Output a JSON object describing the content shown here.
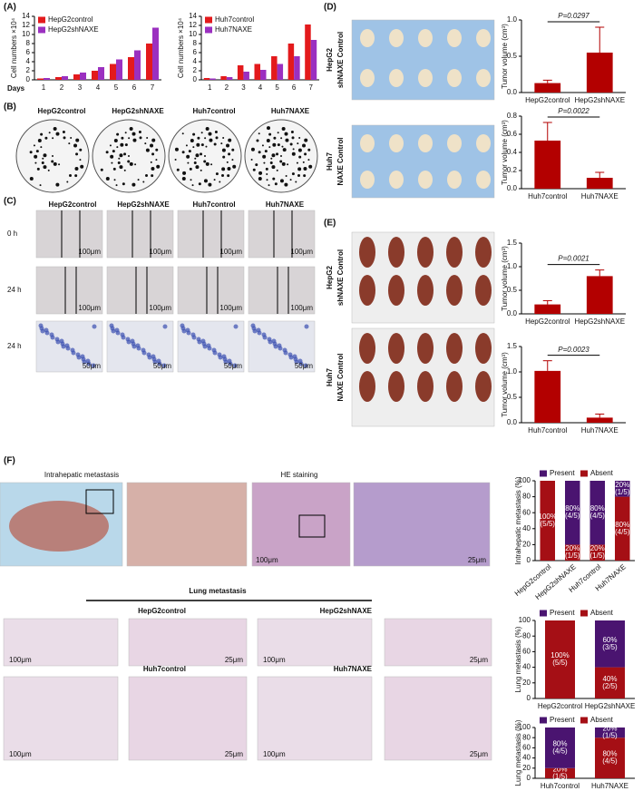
{
  "chart_data": [
    {
      "type": "bar",
      "ylabel": "Cell numbers ×10⁴",
      "xlabel": "Days",
      "categories": [
        "1",
        "2",
        "3",
        "4",
        "5",
        "6",
        "7"
      ],
      "series": [
        {
          "name": "HepG2control",
          "color": "#e31a1c",
          "values": [
            0.3,
            0.6,
            1.2,
            2.0,
            3.5,
            5.0,
            8.0
          ]
        },
        {
          "name": "HepG2shNAXE",
          "color": "#9b30c0",
          "values": [
            0.4,
            0.8,
            1.6,
            2.8,
            4.5,
            6.5,
            11.5
          ]
        }
      ],
      "ylim": [
        0,
        14
      ],
      "yticks": [
        0,
        2,
        4,
        6,
        8,
        10,
        12,
        14
      ],
      "legend": "upper left"
    },
    {
      "type": "bar",
      "ylabel": "Cell numbers ×10⁴",
      "categories": [
        "1",
        "2",
        "3",
        "4",
        "5",
        "6",
        "7"
      ],
      "series": [
        {
          "name": "Huh7control",
          "color": "#e31a1c",
          "values": [
            0.4,
            0.8,
            3.2,
            3.5,
            5.2,
            8.0,
            12.2
          ]
        },
        {
          "name": "Huh7NAXE",
          "color": "#9b30c0",
          "values": [
            0.3,
            0.6,
            1.8,
            2.2,
            3.5,
            5.2,
            8.8
          ]
        }
      ],
      "ylim": [
        0,
        14
      ],
      "yticks": [
        0,
        2,
        4,
        6,
        8,
        10,
        12,
        14
      ],
      "legend": "upper left"
    },
    {
      "type": "bar",
      "ylabel": "Tumor volume (cm³)",
      "categories": [
        "HepG2control",
        "HepG2shNAXE"
      ],
      "annotation": "P=0.0297",
      "series": [
        {
          "color": "#b30000",
          "values": [
            0.13,
            0.55
          ],
          "errors": [
            0.04,
            0.35
          ]
        }
      ],
      "ylim": [
        0,
        1
      ],
      "yticks": [
        {
          "value": 0,
          "label": "0.0"
        },
        {
          "value": 0.5,
          "label": "0.5"
        },
        {
          "value": 1,
          "label": "1.0"
        }
      ]
    },
    {
      "type": "bar",
      "ylabel": "Tumor volume (cm³)",
      "categories": [
        "Huh7control",
        "Huh7NAXE"
      ],
      "annotation": "P=0.0022",
      "series": [
        {
          "color": "#b30000",
          "values": [
            0.53,
            0.12
          ],
          "errors": [
            0.2,
            0.06
          ]
        }
      ],
      "ylim": [
        0,
        0.8
      ],
      "yticks": [
        {
          "value": 0,
          "label": "0.0"
        },
        {
          "value": 0.2,
          "label": "0.2"
        },
        {
          "value": 0.4,
          "label": "0.4"
        },
        {
          "value": 0.6,
          "label": "0.6"
        },
        {
          "value": 0.8,
          "label": "0.8"
        }
      ]
    },
    {
      "type": "bar",
      "ylabel": "Tumor volume (cm³)",
      "categories": [
        "HepG2control",
        "HepG2shNAXE"
      ],
      "annotation": "P=0.0021",
      "series": [
        {
          "color": "#b30000",
          "values": [
            0.2,
            0.8
          ],
          "errors": [
            0.08,
            0.13
          ]
        }
      ],
      "ylim": [
        0,
        1.5
      ],
      "yticks": [
        {
          "value": 0,
          "label": "0.0"
        },
        {
          "value": 0.5,
          "label": "0.5"
        },
        {
          "value": 1,
          "label": "1.0"
        },
        {
          "value": 1.5,
          "label": "1.5"
        }
      ]
    },
    {
      "type": "bar",
      "ylabel": "Tumor volume (cm³)",
      "categories": [
        "Huh7control",
        "Huh7NAXE"
      ],
      "annotation": "P=0.0023",
      "series": [
        {
          "color": "#b30000",
          "values": [
            1.02,
            0.1
          ],
          "errors": [
            0.2,
            0.07
          ]
        }
      ],
      "ylim": [
        0,
        1.5
      ],
      "yticks": [
        {
          "value": 0,
          "label": "0.0"
        },
        {
          "value": 0.5,
          "label": "0.5"
        },
        {
          "value": 1,
          "label": "1.0"
        },
        {
          "value": 1.5,
          "label": "1.5"
        }
      ]
    },
    {
      "type": "stacked_bar",
      "ylabel": "Intrahepatic metastasis (%)",
      "categories": [
        "HepG2control",
        "HepG2shNAXE",
        "Huh7control",
        "Huh7NAXE"
      ],
      "series": [
        {
          "name": "Absent",
          "color": "#a50f15",
          "values": [
            100,
            20,
            20,
            80
          ],
          "value_labels": [
            "100% (5/5)",
            "20% (1/5)",
            "20% (1/5)",
            "80% (4/5)"
          ]
        },
        {
          "name": "Present",
          "color": "#4a1470",
          "values": [
            0,
            80,
            80,
            20
          ],
          "value_labels": [
            null,
            "80% (4/5)",
            "80% (4/5)",
            "20% (1/5)"
          ]
        }
      ],
      "ylim": [
        0,
        100
      ],
      "yticks": [
        0,
        20,
        40,
        60,
        80,
        100
      ],
      "legend": "top",
      "rotate_labels": true
    },
    {
      "type": "stacked_bar",
      "ylabel": "Lung metastasis (%)",
      "categories": [
        "HepG2control",
        "HepG2shNAXE"
      ],
      "series": [
        {
          "name": "Absent",
          "color": "#a50f15",
          "values": [
            100,
            40
          ],
          "value_labels": [
            "100% (5/5)",
            "40% (2/5)"
          ]
        },
        {
          "name": "Present",
          "color": "#4a1470",
          "values": [
            0,
            60
          ],
          "value_labels": [
            null,
            "60% (3/5)"
          ]
        }
      ],
      "ylim": [
        0,
        100
      ],
      "yticks": [
        0,
        20,
        40,
        60,
        80,
        100
      ],
      "legend": "top"
    },
    {
      "type": "stacked_bar",
      "ylabel": "Lung metastasis (%)",
      "categories": [
        "Huh7control",
        "Huh7NAXE"
      ],
      "series": [
        {
          "name": "Absent",
          "color": "#a50f15",
          "values": [
            20,
            80
          ],
          "value_labels": [
            "20% (1/5)",
            "80% (4/5)"
          ]
        },
        {
          "name": "Present",
          "color": "#4a1470",
          "values": [
            80,
            20
          ],
          "value_labels": [
            "80% (4/5)",
            "20% (1/5)"
          ]
        }
      ],
      "ylim": [
        0,
        100
      ],
      "yticks": [
        0,
        20,
        40,
        60,
        80,
        100
      ],
      "legend": "top"
    }
  ],
  "panel_labels": [
    "(A)",
    "(B)",
    "(C)",
    "(D)",
    "(E)",
    "(F)"
  ],
  "B": {
    "labels": [
      "HepG2control",
      "HepG2shNAXE",
      "Huh7control",
      "Huh7NAXE"
    ]
  },
  "C": {
    "labels": [
      "HepG2control",
      "HepG2shNAXE",
      "Huh7control",
      "Huh7NAXE"
    ],
    "rows": [
      "0 h",
      "24 h",
      "24 h"
    ],
    "scales": [
      "100μm",
      "100μm",
      "100μm",
      "100μm",
      "100μm",
      "100μm",
      "100μm",
      "100μm",
      "50μm",
      "50μm",
      "50μm",
      "50μm"
    ]
  },
  "D": {
    "photo_labels": [
      [
        "HepG2",
        "shNAXE Control"
      ],
      [
        "Huh7",
        "NAXE Control"
      ]
    ]
  },
  "E": {
    "photo_labels": [
      [
        "HepG2",
        "shNAXE  Control"
      ],
      [
        "Huh7",
        "NAXE  Control"
      ]
    ]
  },
  "F": {
    "titles": [
      "Intrahepatic metastasis",
      "HE staining"
    ],
    "scales": [
      "100μm",
      "25μm"
    ],
    "lung_title": "Lung metastasis",
    "lung_labels": [
      "HepG2control",
      "HepG2shNAXE",
      "Huh7control",
      "Huh7NAXE"
    ],
    "lung_scales": [
      "100μm",
      "25μm",
      "100μm",
      "25μm",
      "100μm",
      "25μm",
      "100μm",
      "25μm"
    ]
  }
}
